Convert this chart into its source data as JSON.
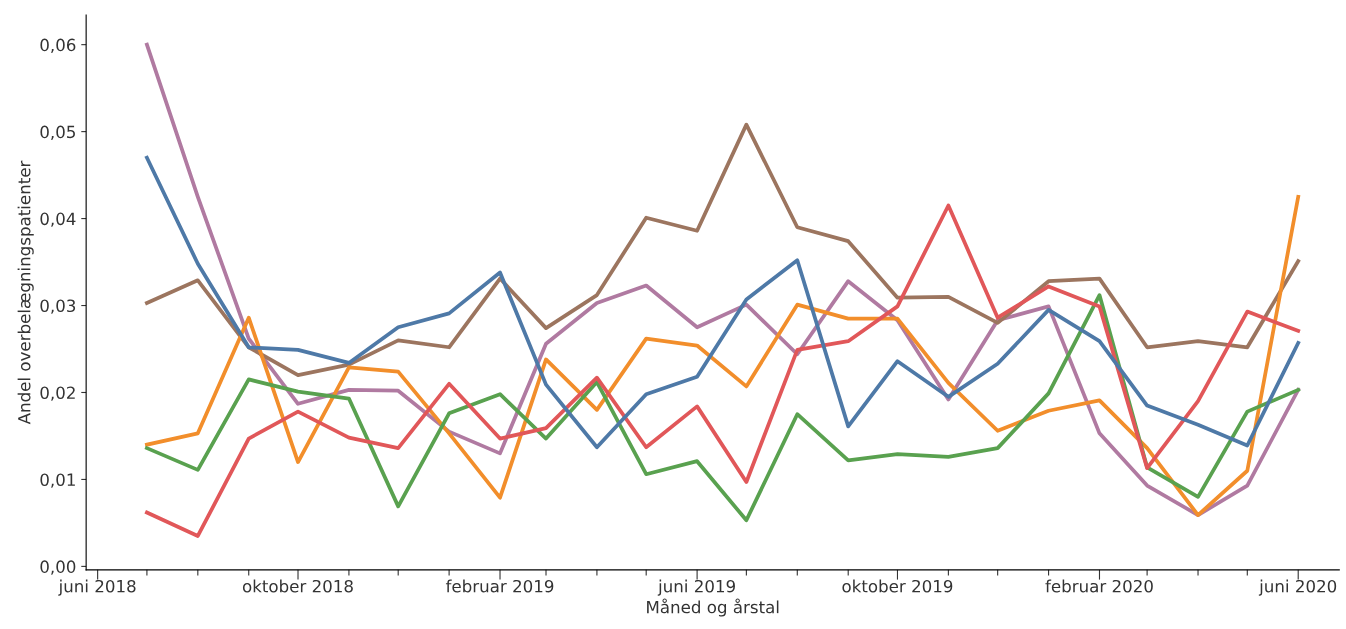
{
  "chart_data": {
    "type": "line",
    "xlabel": "Måned og årstal",
    "ylabel": "Andel overbelægningspatienter",
    "x": [
      "2018-07-01",
      "2018-08-01",
      "2018-09-01",
      "2018-10-01",
      "2018-11-01",
      "2018-12-01",
      "2019-01-01",
      "2019-02-01",
      "2019-03-01",
      "2019-04-01",
      "2019-05-01",
      "2019-06-01",
      "2019-07-01",
      "2019-08-01",
      "2019-09-01",
      "2019-10-01",
      "2019-11-01",
      "2019-12-01",
      "2020-01-01",
      "2020-02-01",
      "2020-03-01",
      "2020-04-01",
      "2020-05-01",
      "2020-06-01"
    ],
    "series": [
      {
        "color": "#b07aa1",
        "values": [
          0.06,
          0.0425,
          0.0262,
          0.0187,
          0.0203,
          0.0202,
          0.0155,
          0.013,
          0.0256,
          0.0303,
          0.0323,
          0.0275,
          0.0301,
          0.0244,
          0.0328,
          0.0283,
          0.0192,
          0.0283,
          0.0299,
          0.0153,
          0.0093,
          0.0059,
          0.0093,
          0.0203
        ]
      },
      {
        "color": "#9c755f",
        "values": [
          0.0303,
          0.0329,
          0.0252,
          0.022,
          0.0232,
          0.026,
          0.0252,
          0.0331,
          0.0274,
          0.0312,
          0.0401,
          0.0386,
          0.0508,
          0.039,
          0.0374,
          0.0309,
          0.031,
          0.028,
          0.0328,
          0.0331,
          0.0252,
          0.0259,
          0.0252,
          0.0351
        ]
      },
      {
        "color": "#f28e2b",
        "values": [
          0.014,
          0.0153,
          0.0286,
          0.012,
          0.0229,
          0.0224,
          0.0153,
          0.0079,
          0.0238,
          0.018,
          0.0262,
          0.0254,
          0.0207,
          0.0301,
          0.0285,
          0.0285,
          0.0211,
          0.0156,
          0.0179,
          0.0191,
          0.0136,
          0.0059,
          0.011,
          0.0425
        ]
      },
      {
        "color": "#59a14f",
        "values": [
          0.0136,
          0.0111,
          0.0215,
          0.0201,
          0.0193,
          0.0069,
          0.0176,
          0.0198,
          0.0147,
          0.0212,
          0.0106,
          0.0121,
          0.0053,
          0.0175,
          0.0122,
          0.0129,
          0.0126,
          0.0136,
          0.0199,
          0.0312,
          0.0114,
          0.008,
          0.0178,
          0.0203
        ]
      },
      {
        "color": "#e15759",
        "values": [
          0.0062,
          0.0035,
          0.0147,
          0.0178,
          0.0148,
          0.0136,
          0.021,
          0.0147,
          0.0159,
          0.0217,
          0.0137,
          0.0184,
          0.0097,
          0.0249,
          0.0259,
          0.0299,
          0.0415,
          0.0286,
          0.0322,
          0.0299,
          0.0113,
          0.019,
          0.0293,
          0.0271
        ]
      },
      {
        "color": "#4e79a7",
        "values": [
          0.047,
          0.0348,
          0.0252,
          0.0249,
          0.0234,
          0.0275,
          0.0291,
          0.0338,
          0.0209,
          0.0137,
          0.0198,
          0.0218,
          0.0307,
          0.0352,
          0.0161,
          0.0236,
          0.0195,
          0.0233,
          0.0295,
          0.0259,
          0.0185,
          0.0163,
          0.0139,
          0.0257
        ]
      }
    ],
    "ylim": [
      -0.0004,
      0.0634
    ],
    "yticks": [
      {
        "value": 0,
        "label": "0,00"
      },
      {
        "value": 0.01,
        "label": "0,01"
      },
      {
        "value": 0.02,
        "label": "0,02"
      },
      {
        "value": 0.03,
        "label": "0,03"
      },
      {
        "value": 0.04,
        "label": "0,04"
      },
      {
        "value": 0.05,
        "label": "0,05"
      },
      {
        "value": 0.06,
        "label": "0,06"
      }
    ],
    "xlim": [
      "2018-05-25",
      "2020-06-26"
    ],
    "xticks": [
      {
        "value": "2018-06-01",
        "label": "juni 2018"
      },
      {
        "value": "2018-07-01",
        "label": null
      },
      {
        "value": "2018-08-01",
        "label": null
      },
      {
        "value": "2018-09-01",
        "label": null
      },
      {
        "value": "2018-10-01",
        "label": "oktober 2018"
      },
      {
        "value": "2018-11-01",
        "label": null
      },
      {
        "value": "2018-12-01",
        "label": null
      },
      {
        "value": "2019-01-01",
        "label": null
      },
      {
        "value": "2019-02-01",
        "label": "februar 2019"
      },
      {
        "value": "2019-03-01",
        "label": null
      },
      {
        "value": "2019-04-01",
        "label": null
      },
      {
        "value": "2019-05-01",
        "label": null
      },
      {
        "value": "2019-06-01",
        "label": "juni 2019"
      },
      {
        "value": "2019-07-01",
        "label": null
      },
      {
        "value": "2019-08-01",
        "label": null
      },
      {
        "value": "2019-09-01",
        "label": null
      },
      {
        "value": "2019-10-01",
        "label": "oktober 2019"
      },
      {
        "value": "2019-11-01",
        "label": null
      },
      {
        "value": "2019-12-01",
        "label": null
      },
      {
        "value": "2020-01-01",
        "label": null
      },
      {
        "value": "2020-02-01",
        "label": "februar 2020"
      },
      {
        "value": "2020-03-01",
        "label": null
      },
      {
        "value": "2020-04-01",
        "label": null
      },
      {
        "value": "2020-05-01",
        "label": null
      },
      {
        "value": "2020-06-01",
        "label": "juni 2020"
      }
    ],
    "marker": "none",
    "line_style": "solid"
  }
}
